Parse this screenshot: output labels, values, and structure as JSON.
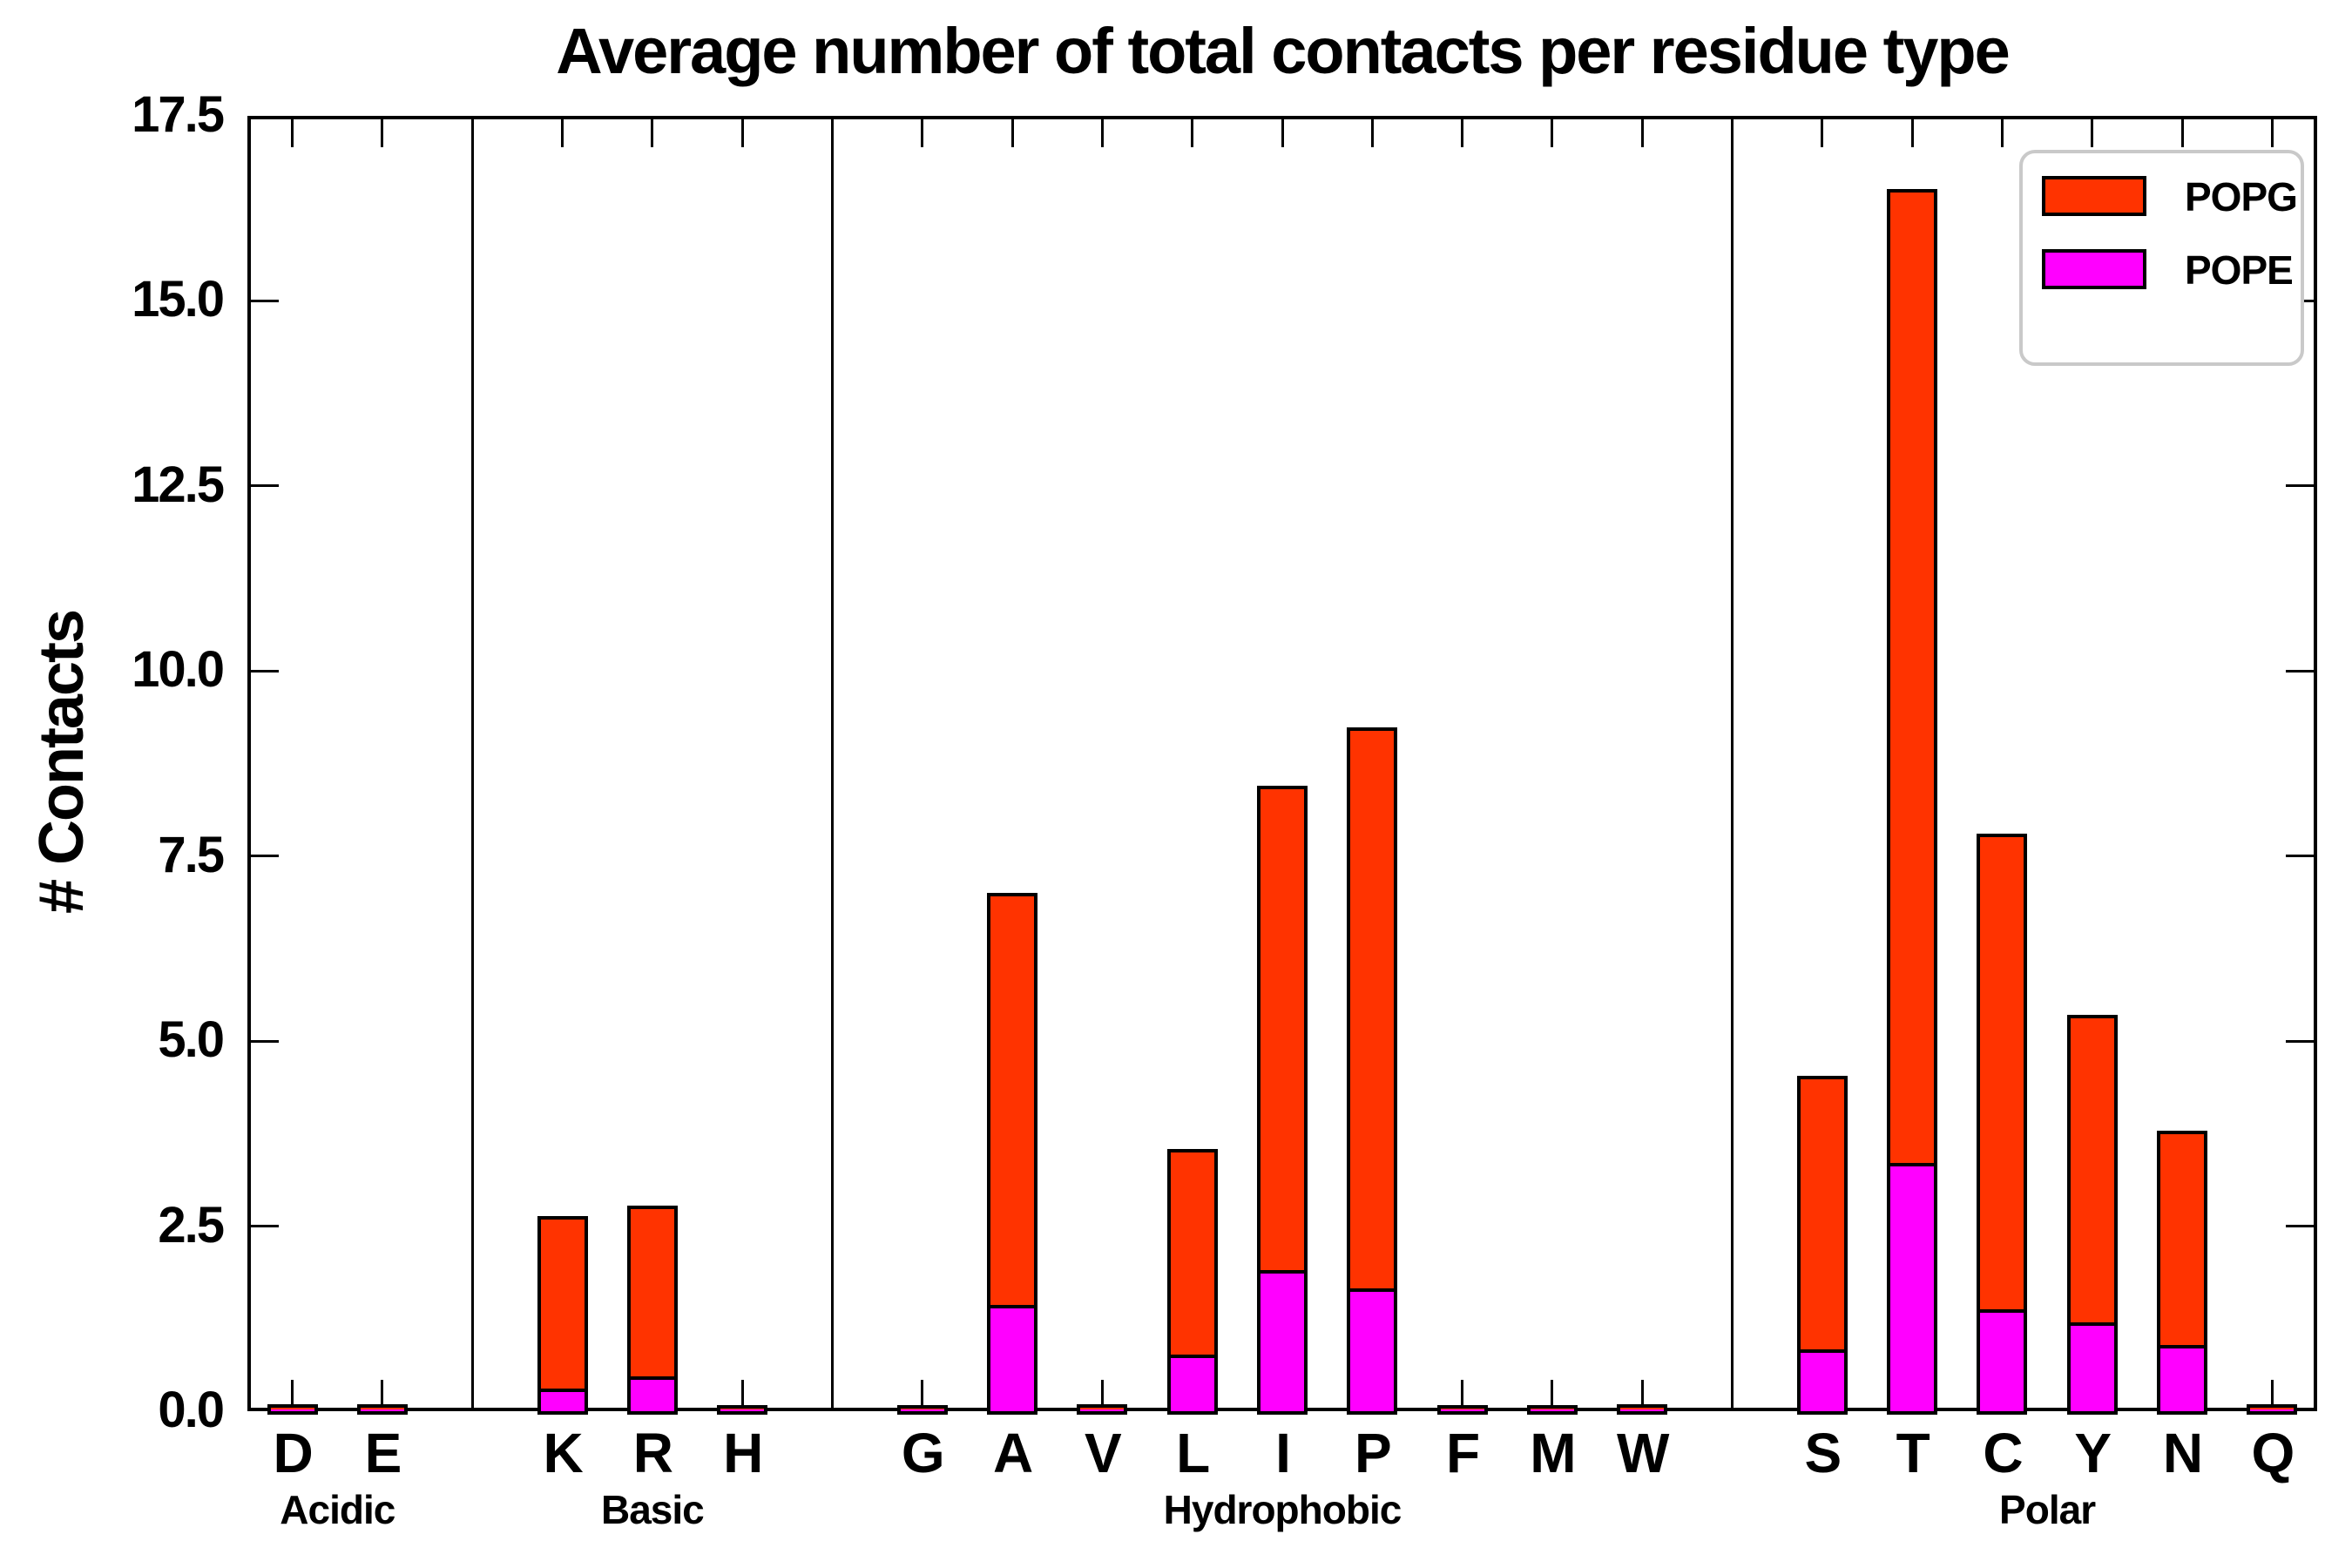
{
  "chart_data": {
    "type": "bar",
    "stacked": true,
    "title": "Average number of total contacts per residue type",
    "ylabel": "# Contacts",
    "xlabel": "",
    "ylim": [
      0,
      17.5
    ],
    "yticks": [
      "0.0",
      "2.5",
      "5.0",
      "7.5",
      "10.0",
      "12.5",
      "15.0",
      "17.5"
    ],
    "grid": false,
    "legend_position": "upper right",
    "categories": [
      "D",
      "E",
      "K",
      "R",
      "H",
      "G",
      "A",
      "V",
      "L",
      "I",
      "P",
      "F",
      "M",
      "W",
      "S",
      "T",
      "C",
      "Y",
      "N",
      "Q"
    ],
    "groups": [
      {
        "label": "Acidic",
        "categories": [
          "D",
          "E"
        ]
      },
      {
        "label": "Basic",
        "categories": [
          "K",
          "R",
          "H"
        ]
      },
      {
        "label": "Hydrophobic",
        "categories": [
          "G",
          "A",
          "V",
          "L",
          "I",
          "P",
          "F",
          "M",
          "W"
        ]
      },
      {
        "label": "Polar",
        "categories": [
          "S",
          "T",
          "C",
          "Y",
          "N",
          "Q"
        ]
      }
    ],
    "series": [
      {
        "name": "POPG",
        "color": "#FF3300",
        "stack_order": "top",
        "values": [
          0.03,
          0.03,
          2.28,
          2.26,
          0.02,
          0.02,
          5.52,
          0.03,
          2.72,
          6.49,
          7.53,
          0.02,
          0.02,
          0.03,
          3.65,
          13.11,
          6.37,
          4.11,
          2.85,
          0.03
        ]
      },
      {
        "name": "POPE",
        "color": "#FF00FF",
        "stack_order": "bottom",
        "values": [
          0.02,
          0.02,
          0.31,
          0.47,
          0.02,
          0.02,
          1.43,
          0.02,
          0.77,
          1.91,
          1.66,
          0.02,
          0.02,
          0.02,
          0.83,
          3.35,
          1.38,
          1.2,
          0.89,
          0.02
        ]
      }
    ],
    "totals": [
      0.05,
      0.05,
      2.59,
      2.73,
      0.04,
      0.04,
      6.95,
      0.05,
      3.49,
      8.4,
      9.19,
      0.04,
      0.04,
      0.05,
      4.48,
      16.46,
      7.75,
      5.31,
      3.74,
      0.05
    ],
    "bar_edge_color": "#000000",
    "separator_color": "#000000"
  }
}
